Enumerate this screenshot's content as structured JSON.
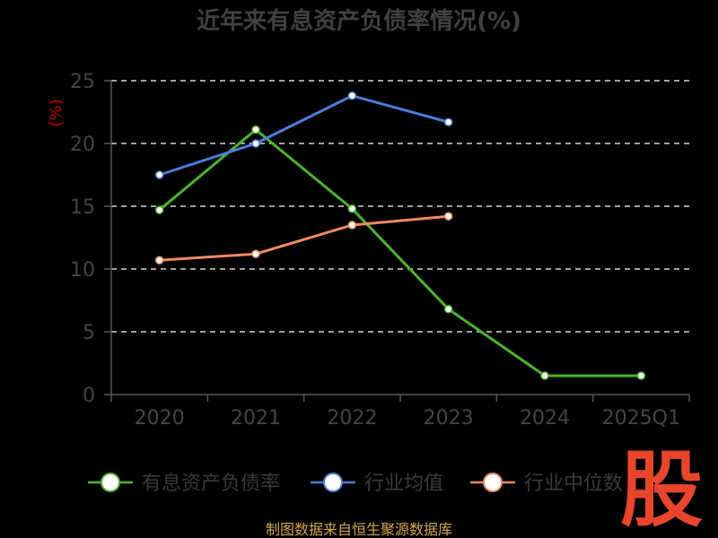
{
  "chart_data": {
    "type": "line",
    "title": "近年来有息资产负债率情况(%)",
    "ylabel": "(%)",
    "categories": [
      "2020",
      "2021",
      "2022",
      "2023",
      "2024",
      "2025Q1"
    ],
    "yticks": [
      "0",
      "5",
      "10",
      "15",
      "20",
      "25"
    ],
    "ylim": [
      0,
      25
    ],
    "grid": true,
    "legend_position": "bottom",
    "series": [
      {
        "name": "有息资产负债率",
        "color": "#4cb52b",
        "values": [
          14.7,
          21.1,
          14.8,
          6.8,
          1.5,
          1.5
        ]
      },
      {
        "name": "行业均值",
        "color": "#4a7fdc",
        "values": [
          17.5,
          20.0,
          23.8,
          21.7,
          null,
          null
        ]
      },
      {
        "name": "行业中位数",
        "color": "#f08a5d",
        "values": [
          10.7,
          11.2,
          13.5,
          14.2,
          null,
          null
        ]
      }
    ]
  },
  "footer": {
    "source": "制图数据来自恒生聚源数据库"
  },
  "watermark": {
    "logo_text": "股"
  }
}
